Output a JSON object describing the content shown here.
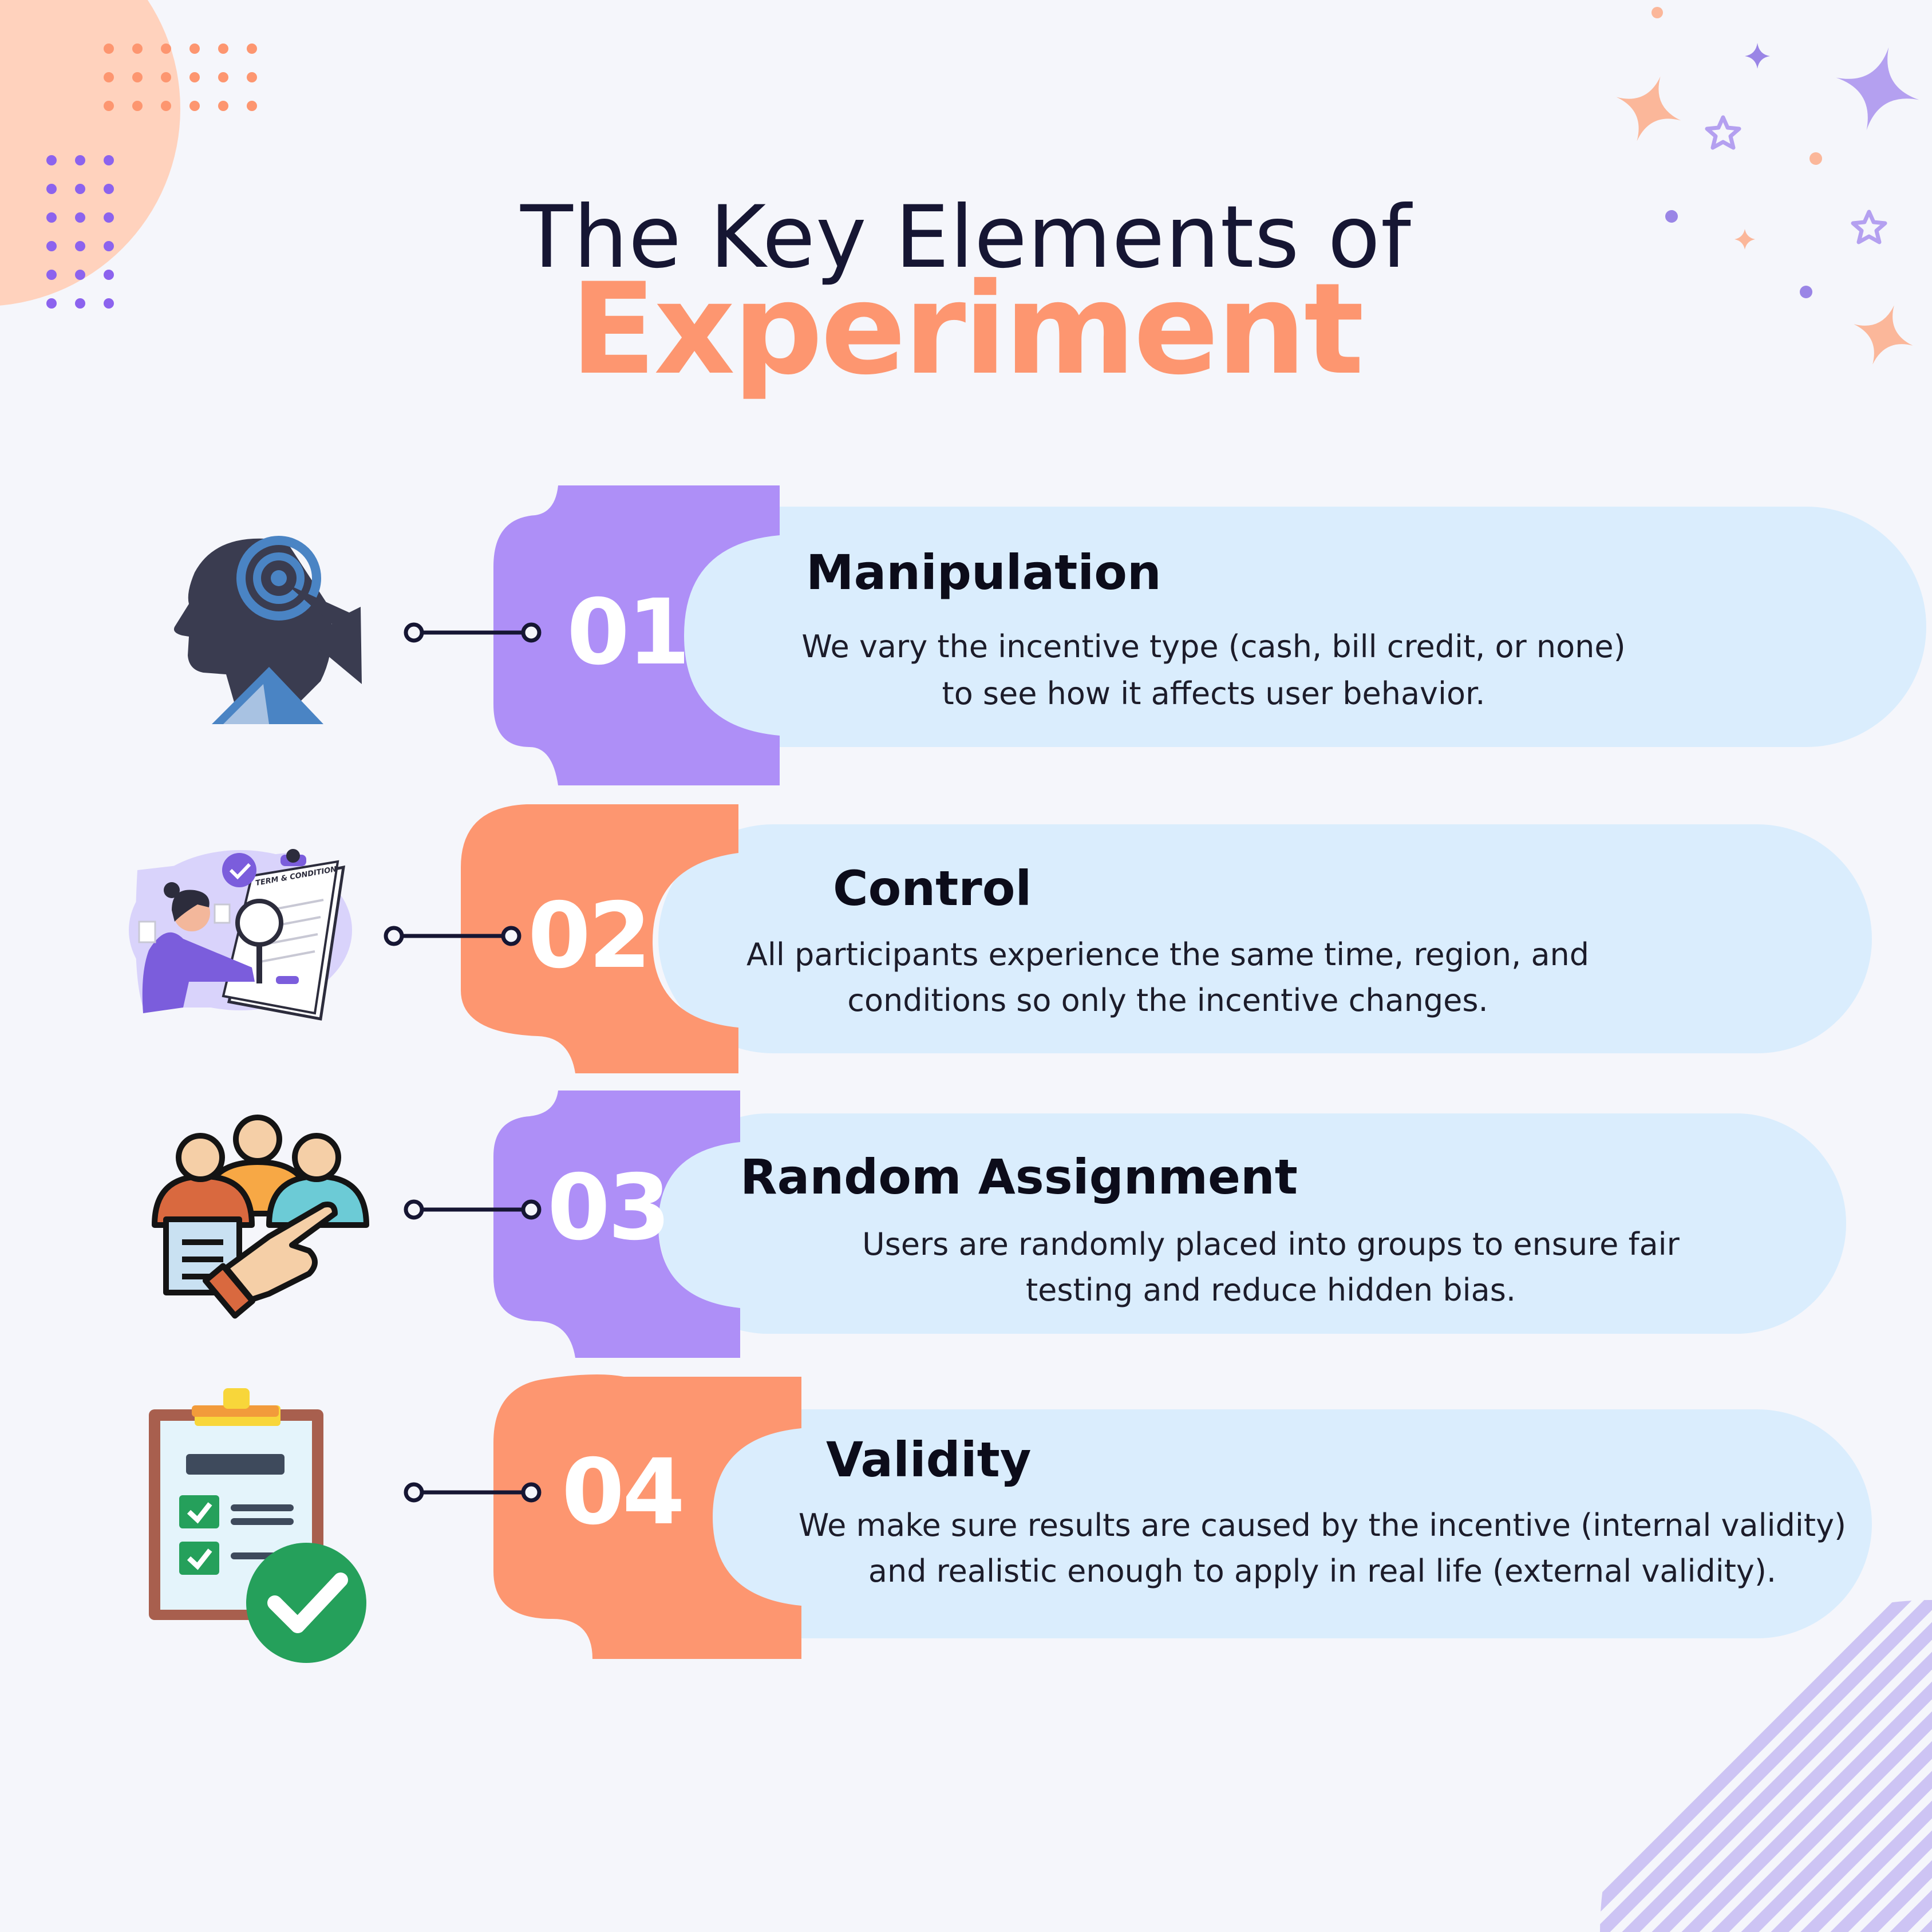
{
  "title": {
    "line1": "The Key Elements of",
    "line2": "Experiment"
  },
  "colors": {
    "background": "#f5f6fb",
    "purple": "#ae8ff7",
    "orange": "#fd9670",
    "card": "#daedfd",
    "dark": "#161633"
  },
  "items": [
    {
      "number": "01",
      "title": "Manipulation",
      "desc_line1": "We vary the incentive type (cash, bill credit, or none)",
      "desc_line2": "to see how it affects user behavior.",
      "icon": "head-target-icon"
    },
    {
      "number": "02",
      "title": "Control",
      "desc_line1": "All participants experience the same time, region, and",
      "desc_line2": "conditions so only the incentive changes.",
      "icon": "terms-inspection-icon",
      "icon_label": "TERM & CONDITION"
    },
    {
      "number": "03",
      "title": "Random Assignment",
      "desc_line1": "Users are randomly placed into groups to ensure fair",
      "desc_line2": "testing and reduce hidden bias.",
      "icon": "group-selection-icon"
    },
    {
      "number": "04",
      "title": "Validity",
      "desc_line1": "We make sure results are caused by the incentive (internal validity)",
      "desc_line2": "and realistic enough to apply in real life (external validity).",
      "icon": "checklist-approved-icon"
    }
  ]
}
